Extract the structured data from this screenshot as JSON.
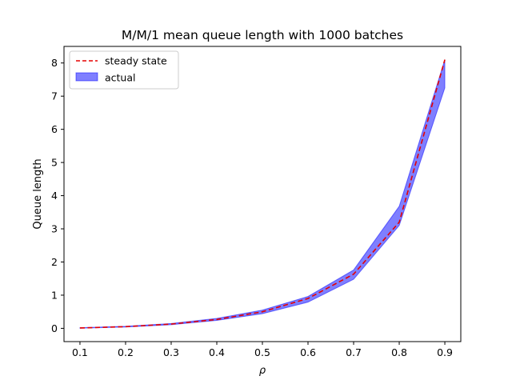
{
  "chart_data": {
    "type": "area",
    "title": "M/M/1 mean queue length with 1000 batches",
    "xlabel": "ρ",
    "ylabel": "Queue length",
    "xlim": [
      0.065,
      0.935
    ],
    "ylim": [
      -0.4,
      8.5
    ],
    "xticks": [
      0.1,
      0.2,
      0.3,
      0.4,
      0.5,
      0.6,
      0.7,
      0.8,
      0.9
    ],
    "xtick_labels": [
      "0.1",
      "0.2",
      "0.3",
      "0.4",
      "0.5",
      "0.6",
      "0.7",
      "0.8",
      "0.9"
    ],
    "yticks": [
      0,
      1,
      2,
      3,
      4,
      5,
      6,
      7,
      8
    ],
    "ytick_labels": [
      "0",
      "1",
      "2",
      "3",
      "4",
      "5",
      "6",
      "7",
      "8"
    ],
    "grid": false,
    "legend_position": "upper left",
    "series": [
      {
        "name": "steady state",
        "style": "dashed-line",
        "color": "#e60000",
        "x": [
          0.1,
          0.2,
          0.3,
          0.4,
          0.5,
          0.6,
          0.7,
          0.8,
          0.9
        ],
        "values": [
          0.011,
          0.05,
          0.129,
          0.267,
          0.5,
          0.9,
          1.633,
          3.2,
          8.1
        ]
      },
      {
        "name": "actual",
        "style": "band",
        "color": "#0000ff",
        "edge_color": "#4d4dff",
        "opacity": 0.5,
        "x": [
          0.1,
          0.2,
          0.3,
          0.4,
          0.5,
          0.6,
          0.7,
          0.8,
          0.9
        ],
        "lower": [
          0.005,
          0.04,
          0.11,
          0.24,
          0.44,
          0.79,
          1.48,
          3.1,
          7.25
        ],
        "upper": [
          0.02,
          0.06,
          0.145,
          0.3,
          0.55,
          0.96,
          1.76,
          3.68,
          8.1
        ]
      }
    ]
  }
}
